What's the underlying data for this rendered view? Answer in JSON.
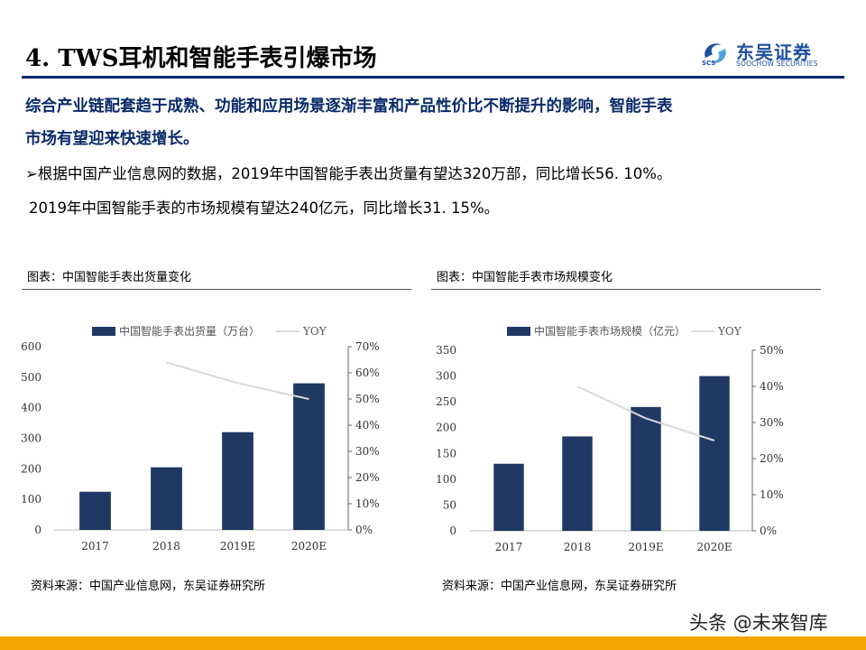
{
  "header": {
    "title": "4. TWS耳机和智能手表引爆市场",
    "logo_name": "东吴证券",
    "logo_sub": "SOOCHOW SECURITIES",
    "logo_code": "SCS"
  },
  "summary": {
    "line1": "综合产业链配套趋于成熟、功能和应用场景逐渐丰富和产品性价比不断提升的影响，智能手表",
    "line2": "市场有望迎来快速增长。"
  },
  "bullets": {
    "b1": "根据中国产业信息网的数据，2019年中国智能手表出货量有望达320万部，同比增长56. 10%。",
    "b2": "2019年中国智能手表的市场规模有望达240亿元，同比增长31. 15%。"
  },
  "captions": {
    "left": "图表：中国智能手表出货量变化",
    "right": "图表：中国智能手表市场规模变化"
  },
  "sources": {
    "left": "资料来源：中国产业信息网，东吴证券研究所",
    "right": "资料来源：中国产业信息网，东吴证券研究所"
  },
  "watermark": "头条 @未来智库",
  "colors": {
    "bar": "#1f3864",
    "line": "#d9d9d9",
    "accent": "#0a2a6a",
    "footer_bar": "#f5a400"
  },
  "chart_data": [
    {
      "type": "bar",
      "categories": [
        "2017",
        "2018",
        "2019E",
        "2020E"
      ],
      "series": [
        {
          "name": "中国智能手表出货量（万台）",
          "type": "bar",
          "axis": "left",
          "values": [
            125,
            205,
            320,
            480
          ]
        },
        {
          "name": "YOY",
          "type": "line",
          "axis": "right",
          "values": [
            null,
            0.64,
            0.561,
            0.5
          ]
        }
      ],
      "ylim": [
        0,
        600
      ],
      "yticks": [
        "0",
        "100",
        "200",
        "300",
        "400",
        "500",
        "600"
      ],
      "y2lim": [
        0,
        0.7
      ],
      "y2ticks": [
        "0%",
        "10%",
        "20%",
        "30%",
        "40%",
        "50%",
        "60%",
        "70%"
      ],
      "legend": "top"
    },
    {
      "type": "bar",
      "categories": [
        "2017",
        "2018",
        "2019E",
        "2020E"
      ],
      "series": [
        {
          "name": "中国智能手表市场规模（亿元）",
          "type": "bar",
          "axis": "left",
          "values": [
            130,
            183,
            240,
            300
          ]
        },
        {
          "name": "YOY",
          "type": "line",
          "axis": "right",
          "values": [
            null,
            0.4,
            0.3115,
            0.25
          ]
        }
      ],
      "ylim": [
        0,
        350
      ],
      "yticks": [
        "0",
        "50",
        "100",
        "150",
        "200",
        "250",
        "300",
        "350"
      ],
      "y2lim": [
        0,
        0.5
      ],
      "y2ticks": [
        "0%",
        "10%",
        "20%",
        "30%",
        "40%",
        "50%"
      ],
      "legend": "top"
    }
  ]
}
